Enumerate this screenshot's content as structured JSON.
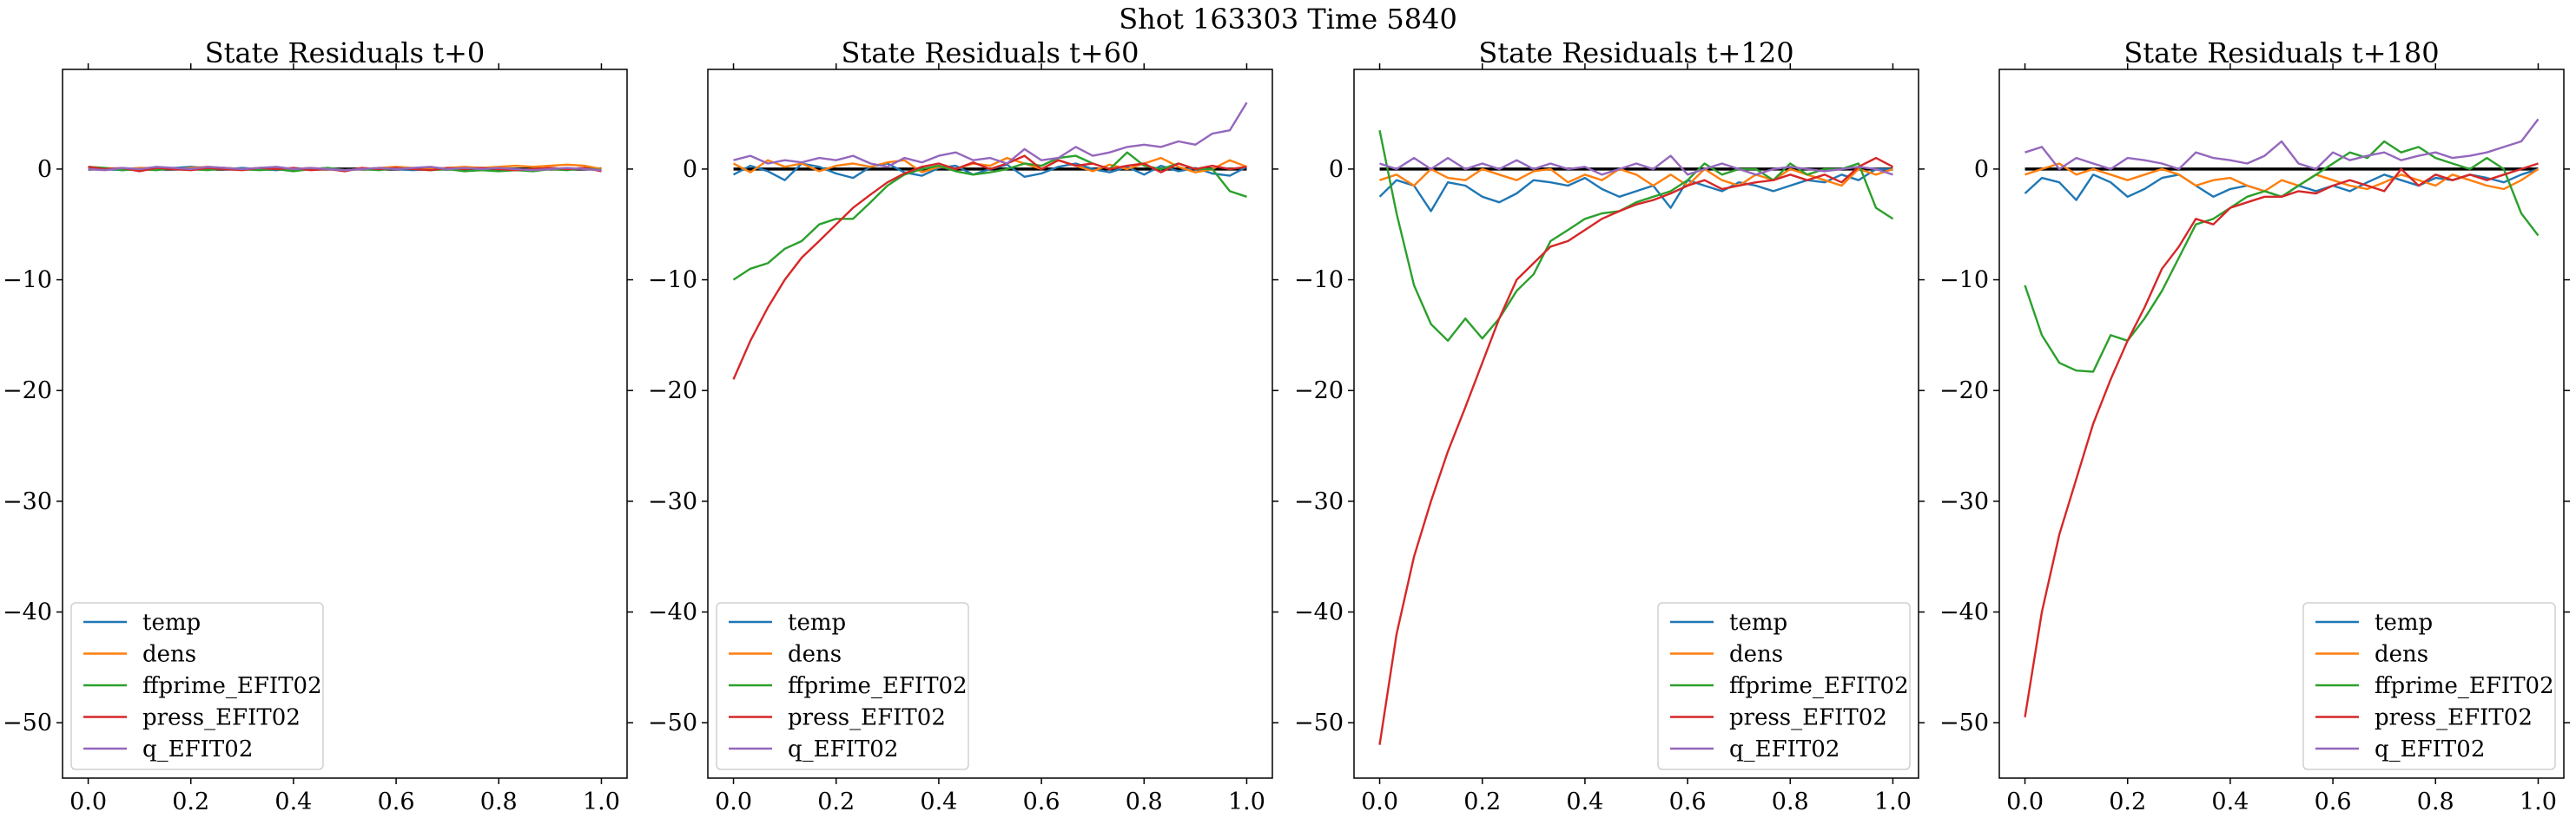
{
  "figure": {
    "title": "Shot 163303   Time 5840"
  },
  "chart_data": [
    {
      "type": "line",
      "title": "State Residuals t+0",
      "xlim": [
        -0.05,
        1.05
      ],
      "ylim": [
        -55,
        9
      ],
      "xticks": [
        0.0,
        0.2,
        0.4,
        0.6,
        0.8,
        1.0
      ],
      "yticks": [
        0,
        -10,
        -20,
        -30,
        -40,
        -50
      ],
      "xtick_labels": [
        "0.0",
        "0.2",
        "0.4",
        "0.6",
        "0.8",
        "1.0"
      ],
      "ytick_labels": [
        "0",
        "−10",
        "−20",
        "−30",
        "−40",
        "−50"
      ],
      "legend": "lower-left",
      "x": [
        0.0,
        0.033,
        0.067,
        0.1,
        0.133,
        0.167,
        0.2,
        0.233,
        0.267,
        0.3,
        0.333,
        0.367,
        0.4,
        0.433,
        0.467,
        0.5,
        0.533,
        0.567,
        0.6,
        0.633,
        0.667,
        0.7,
        0.733,
        0.767,
        0.8,
        0.833,
        0.867,
        0.9,
        0.933,
        0.967,
        1.0
      ],
      "series": [
        {
          "name": "temp",
          "color": "#1f77b4",
          "values": [
            0.1,
            0.0,
            -0.1,
            0.1,
            0.0,
            0.1,
            0.2,
            0.1,
            0.0,
            0.1,
            0.0,
            -0.1,
            0.1,
            0.0,
            0.1,
            -0.1,
            0.0,
            0.1,
            0.0,
            -0.1,
            0.0,
            0.1,
            0.0,
            0.1,
            0.0,
            -0.1,
            0.0,
            0.1,
            0.0,
            0.1,
            -0.1
          ]
        },
        {
          "name": "dens",
          "color": "#ff7f0e",
          "values": [
            0.0,
            0.1,
            0.0,
            0.1,
            0.1,
            0.0,
            0.1,
            0.2,
            0.1,
            0.0,
            0.1,
            0.1,
            0.0,
            0.1,
            0.0,
            -0.1,
            0.0,
            0.1,
            0.2,
            0.1,
            0.0,
            0.1,
            0.2,
            0.1,
            0.2,
            0.3,
            0.2,
            0.3,
            0.4,
            0.3,
            0.0
          ]
        },
        {
          "name": "ffprime_EFIT02",
          "color": "#2ca02c",
          "values": [
            0.2,
            0.1,
            -0.1,
            0.0,
            -0.1,
            0.1,
            0.0,
            -0.1,
            0.1,
            0.0,
            -0.1,
            0.0,
            -0.2,
            0.0,
            0.1,
            -0.1,
            0.0,
            -0.1,
            0.1,
            0.0,
            -0.1,
            0.0,
            -0.2,
            -0.1,
            -0.2,
            -0.1,
            -0.2,
            0.0,
            -0.1,
            0.1,
            -0.1
          ]
        },
        {
          "name": "press_EFIT02",
          "color": "#d62728",
          "values": [
            0.2,
            0.0,
            0.1,
            -0.2,
            0.1,
            0.0,
            -0.1,
            0.1,
            0.0,
            -0.1,
            0.1,
            0.0,
            0.1,
            -0.1,
            0.0,
            -0.2,
            0.1,
            0.0,
            0.1,
            0.0,
            -0.1,
            0.1,
            0.0,
            0.1,
            0.0,
            -0.1,
            0.0,
            0.1,
            0.0,
            0.1,
            -0.2
          ]
        },
        {
          "name": "q_EFIT02",
          "color": "#9467bd",
          "values": [
            0.0,
            -0.1,
            0.1,
            0.0,
            0.2,
            0.1,
            0.0,
            0.2,
            0.1,
            0.0,
            0.1,
            0.2,
            0.0,
            0.1,
            0.0,
            -0.1,
            0.0,
            0.1,
            0.0,
            0.1,
            0.2,
            0.0,
            0.1,
            0.0,
            0.1,
            0.0,
            -0.1,
            0.0,
            0.1,
            0.0,
            -0.1
          ]
        }
      ]
    },
    {
      "type": "line",
      "title": "State Residuals t+60",
      "xlim": [
        -0.05,
        1.05
      ],
      "ylim": [
        -55,
        9
      ],
      "xticks": [
        0.0,
        0.2,
        0.4,
        0.6,
        0.8,
        1.0
      ],
      "yticks": [
        0,
        -10,
        -20,
        -30,
        -40,
        -50
      ],
      "xtick_labels": [
        "0.0",
        "0.2",
        "0.4",
        "0.6",
        "0.8",
        "1.0"
      ],
      "ytick_labels": [
        "0",
        "−10",
        "−20",
        "−30",
        "−40",
        "−50"
      ],
      "legend": "lower-left",
      "x": [
        0.0,
        0.033,
        0.067,
        0.1,
        0.133,
        0.167,
        0.2,
        0.233,
        0.267,
        0.3,
        0.333,
        0.367,
        0.4,
        0.433,
        0.467,
        0.5,
        0.533,
        0.567,
        0.6,
        0.633,
        0.667,
        0.7,
        0.733,
        0.767,
        0.8,
        0.833,
        0.867,
        0.9,
        0.933,
        0.967,
        1.0
      ],
      "series": [
        {
          "name": "temp",
          "color": "#1f77b4",
          "values": [
            -0.5,
            0.3,
            -0.2,
            -1.0,
            0.5,
            0.2,
            -0.4,
            -0.8,
            0.2,
            0.5,
            -0.3,
            -0.6,
            0.1,
            0.3,
            -0.5,
            0.0,
            0.4,
            -0.7,
            -0.4,
            0.2,
            0.5,
            0.0,
            -0.3,
            0.2,
            -0.5,
            0.3,
            -0.2,
            0.1,
            -0.4,
            -0.6,
            0.2
          ]
        },
        {
          "name": "dens",
          "color": "#ff7f0e",
          "values": [
            0.5,
            -0.3,
            0.8,
            0.2,
            0.5,
            -0.2,
            0.3,
            0.5,
            0.2,
            0.6,
            0.8,
            -0.3,
            0.2,
            0.0,
            0.5,
            0.3,
            1.0,
            0.5,
            0.0,
            0.8,
            0.3,
            -0.2,
            0.4,
            0.0,
            0.5,
            1.0,
            0.2,
            -0.3,
            0.0,
            0.8,
            0.2
          ]
        },
        {
          "name": "ffprime_EFIT02",
          "color": "#2ca02c",
          "values": [
            -10.0,
            -9.0,
            -8.5,
            -7.2,
            -6.5,
            -5.0,
            -4.5,
            -4.5,
            -3.0,
            -1.5,
            -0.5,
            0.0,
            0.3,
            -0.2,
            -0.5,
            -0.3,
            0.0,
            0.5,
            0.3,
            1.0,
            1.2,
            0.5,
            0.0,
            1.5,
            0.3,
            0.0,
            0.5,
            0.0,
            0.0,
            -2.0,
            -2.5
          ]
        },
        {
          "name": "press_EFIT02",
          "color": "#d62728",
          "values": [
            -19.0,
            -15.5,
            -12.5,
            -10.0,
            -8.0,
            -6.5,
            -5.0,
            -3.5,
            -2.3,
            -1.2,
            -0.4,
            0.2,
            0.5,
            0.0,
            0.6,
            0.0,
            0.5,
            1.2,
            0.0,
            0.8,
            0.3,
            0.5,
            0.0,
            0.3,
            0.5,
            -0.3,
            0.5,
            0.0,
            0.3,
            0.0,
            0.2
          ]
        },
        {
          "name": "q_EFIT02",
          "color": "#9467bd",
          "values": [
            0.8,
            1.2,
            0.5,
            0.8,
            0.6,
            1.0,
            0.8,
            1.2,
            0.5,
            0.2,
            1.0,
            0.6,
            1.2,
            1.5,
            0.8,
            1.0,
            0.5,
            1.8,
            0.8,
            1.0,
            2.0,
            1.2,
            1.5,
            2.0,
            2.2,
            2.0,
            2.5,
            2.2,
            3.2,
            3.5,
            6.0
          ]
        }
      ]
    },
    {
      "type": "line",
      "title": "State Residuals t+120",
      "xlim": [
        -0.05,
        1.05
      ],
      "ylim": [
        -55,
        9
      ],
      "xticks": [
        0.0,
        0.2,
        0.4,
        0.6,
        0.8,
        1.0
      ],
      "yticks": [
        0,
        -10,
        -20,
        -30,
        -40,
        -50
      ],
      "xtick_labels": [
        "0.0",
        "0.2",
        "0.4",
        "0.6",
        "0.8",
        "1.0"
      ],
      "ytick_labels": [
        "0",
        "−10",
        "−20",
        "−30",
        "−40",
        "−50"
      ],
      "legend": "lower-right",
      "x": [
        0.0,
        0.033,
        0.067,
        0.1,
        0.133,
        0.167,
        0.2,
        0.233,
        0.267,
        0.3,
        0.333,
        0.367,
        0.4,
        0.433,
        0.467,
        0.5,
        0.533,
        0.567,
        0.6,
        0.633,
        0.667,
        0.7,
        0.733,
        0.767,
        0.8,
        0.833,
        0.867,
        0.9,
        0.933,
        0.967,
        1.0
      ],
      "series": [
        {
          "name": "temp",
          "color": "#1f77b4",
          "values": [
            -2.5,
            -1.0,
            -1.5,
            -3.8,
            -1.2,
            -1.5,
            -2.5,
            -3.0,
            -2.2,
            -1.0,
            -1.2,
            -1.5,
            -0.8,
            -1.8,
            -2.5,
            -2.0,
            -1.5,
            -3.5,
            -1.0,
            -1.5,
            -2.0,
            -1.2,
            -1.5,
            -2.0,
            -1.5,
            -1.0,
            -1.2,
            -0.5,
            -1.0,
            0.0,
            0.0
          ]
        },
        {
          "name": "dens",
          "color": "#ff7f0e",
          "values": [
            -1.0,
            -0.5,
            -1.5,
            0.0,
            -0.8,
            -1.0,
            0.0,
            -0.5,
            -1.0,
            -0.2,
            0.0,
            -1.2,
            -0.5,
            -1.0,
            0.0,
            -0.5,
            -1.5,
            -0.5,
            -1.5,
            0.0,
            -1.0,
            -1.5,
            -0.5,
            -1.0,
            0.0,
            -0.5,
            -1.0,
            -1.5,
            0.0,
            -0.5,
            0.0
          ]
        },
        {
          "name": "ffprime_EFIT02",
          "color": "#2ca02c",
          "values": [
            3.5,
            -4.0,
            -10.5,
            -14.0,
            -15.5,
            -13.5,
            -15.3,
            -13.5,
            -11.0,
            -9.5,
            -6.5,
            -5.5,
            -4.5,
            -4.0,
            -3.8,
            -3.0,
            -2.5,
            -2.0,
            -1.0,
            0.5,
            -0.5,
            0.0,
            0.0,
            -1.0,
            0.5,
            -0.5,
            0.0,
            0.0,
            0.5,
            -3.5,
            -4.5
          ]
        },
        {
          "name": "press_EFIT02",
          "color": "#d62728",
          "values": [
            -52.0,
            -42.0,
            -35.0,
            -30.0,
            -25.5,
            -21.5,
            -17.5,
            -13.5,
            -10.0,
            -8.5,
            -7.0,
            -6.5,
            -5.5,
            -4.5,
            -3.8,
            -3.2,
            -2.8,
            -2.2,
            -1.5,
            -1.0,
            -1.8,
            -1.5,
            -1.2,
            -1.0,
            -0.5,
            -1.0,
            -0.5,
            -1.2,
            0.2,
            1.0,
            0.2
          ]
        },
        {
          "name": "q_EFIT02",
          "color": "#9467bd",
          "values": [
            0.5,
            0.0,
            1.0,
            0.0,
            1.0,
            0.0,
            0.5,
            0.0,
            0.8,
            0.0,
            0.5,
            0.0,
            0.2,
            -0.5,
            0.0,
            0.5,
            0.0,
            1.2,
            -0.5,
            0.0,
            0.5,
            0.0,
            -0.5,
            0.0,
            0.2,
            0.0,
            -0.2,
            0.0,
            0.2,
            0.0,
            -0.5
          ]
        }
      ]
    },
    {
      "type": "line",
      "title": "State Residuals t+180",
      "xlim": [
        -0.05,
        1.05
      ],
      "ylim": [
        -55,
        9
      ],
      "xticks": [
        0.0,
        0.2,
        0.4,
        0.6,
        0.8,
        1.0
      ],
      "yticks": [
        0,
        -10,
        -20,
        -30,
        -40,
        -50
      ],
      "xtick_labels": [
        "0.0",
        "0.2",
        "0.4",
        "0.6",
        "0.8",
        "1.0"
      ],
      "ytick_labels": [
        "0",
        "−10",
        "−20",
        "−30",
        "−40",
        "−50"
      ],
      "legend": "lower-right",
      "x": [
        0.0,
        0.033,
        0.067,
        0.1,
        0.133,
        0.167,
        0.2,
        0.233,
        0.267,
        0.3,
        0.333,
        0.367,
        0.4,
        0.433,
        0.467,
        0.5,
        0.533,
        0.567,
        0.6,
        0.633,
        0.667,
        0.7,
        0.733,
        0.767,
        0.8,
        0.833,
        0.867,
        0.9,
        0.933,
        0.967,
        1.0
      ],
      "series": [
        {
          "name": "temp",
          "color": "#1f77b4",
          "values": [
            -2.2,
            -0.8,
            -1.2,
            -2.8,
            -0.5,
            -1.2,
            -2.5,
            -1.8,
            -0.8,
            -0.5,
            -1.5,
            -2.5,
            -1.8,
            -1.5,
            -2.0,
            -2.5,
            -1.5,
            -2.0,
            -1.5,
            -2.0,
            -1.2,
            -0.5,
            -1.0,
            -1.5,
            -0.8,
            -1.0,
            -0.5,
            -0.8,
            -1.2,
            -0.5,
            0.0
          ]
        },
        {
          "name": "dens",
          "color": "#ff7f0e",
          "values": [
            -0.5,
            0.0,
            0.5,
            -0.5,
            0.0,
            -0.5,
            -1.0,
            -0.5,
            0.0,
            -0.5,
            -1.5,
            -1.0,
            -0.8,
            -1.5,
            -2.0,
            -1.0,
            -1.5,
            -0.5,
            -1.0,
            -1.5,
            -1.8,
            -1.2,
            -0.5,
            -1.0,
            -1.5,
            -0.5,
            -1.0,
            -1.5,
            -1.8,
            -1.0,
            0.0
          ]
        },
        {
          "name": "ffprime_EFIT02",
          "color": "#2ca02c",
          "values": [
            -10.5,
            -15.0,
            -17.5,
            -18.2,
            -18.3,
            -15.0,
            -15.5,
            -13.5,
            -11.0,
            -8.0,
            -5.0,
            -4.5,
            -3.5,
            -2.5,
            -2.0,
            -2.5,
            -1.5,
            -0.5,
            0.5,
            1.5,
            1.0,
            2.5,
            1.5,
            2.0,
            1.0,
            0.5,
            0.0,
            1.0,
            0.0,
            -4.0,
            -6.0
          ]
        },
        {
          "name": "press_EFIT02",
          "color": "#d62728",
          "values": [
            -49.5,
            -40.0,
            -33.0,
            -28.0,
            -23.0,
            -19.0,
            -15.5,
            -12.5,
            -9.0,
            -7.0,
            -4.5,
            -5.0,
            -3.5,
            -3.0,
            -2.5,
            -2.5,
            -2.0,
            -2.2,
            -1.5,
            -1.0,
            -1.5,
            -2.0,
            0.0,
            -1.5,
            -0.5,
            -1.0,
            -0.5,
            -1.0,
            -0.5,
            0.0,
            0.5
          ]
        },
        {
          "name": "q_EFIT02",
          "color": "#9467bd",
          "values": [
            1.5,
            2.0,
            0.0,
            1.0,
            0.5,
            0.0,
            1.0,
            0.8,
            0.5,
            0.0,
            1.5,
            1.0,
            0.8,
            0.5,
            1.2,
            2.5,
            0.5,
            0.0,
            1.5,
            0.8,
            1.2,
            1.5,
            0.8,
            1.2,
            1.5,
            1.0,
            1.2,
            1.5,
            2.0,
            2.5,
            4.5
          ]
        }
      ]
    }
  ]
}
